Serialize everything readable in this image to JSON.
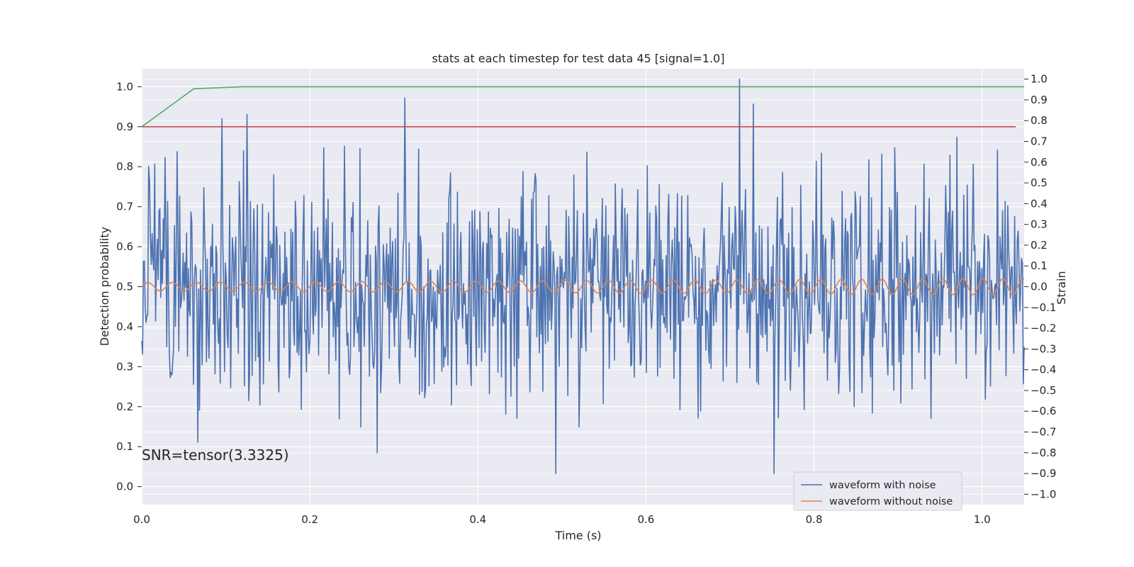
{
  "chart_data": {
    "type": "line",
    "title": "stats at each timestep for test data 45 [signal=1.0]",
    "xlabel": "Time (s)",
    "ylabel_left": "Detection probability",
    "ylabel_right": "Strain",
    "xlim": [
      0.0,
      1.05
    ],
    "ylim_left": [
      -0.045,
      1.045
    ],
    "ylim_right": [
      -1.05,
      1.05
    ],
    "x_ticks": [
      "0.0",
      "0.2",
      "0.4",
      "0.6",
      "0.8",
      "1.0"
    ],
    "y_left_ticks": [
      "0.0",
      "0.1",
      "0.2",
      "0.3",
      "0.4",
      "0.5",
      "0.6",
      "0.7",
      "0.8",
      "0.9",
      "1.0"
    ],
    "y_right_ticks": [
      "−1.0",
      "−0.9",
      "−0.8",
      "−0.7",
      "−0.6",
      "−0.5",
      "−0.4",
      "−0.3",
      "−0.2",
      "−0.1",
      "0.0",
      "0.1",
      "0.2",
      "0.3",
      "0.4",
      "0.5",
      "0.6",
      "0.7",
      "0.8",
      "0.9",
      "1.0"
    ],
    "grid": true,
    "annotation": "SNR=tensor(3.3325)",
    "legend_position": "lower-right",
    "series": [
      {
        "name": "waveform with noise",
        "axis": "right",
        "color": "#4c72b0",
        "sample_count": 1024,
        "seed": 45,
        "spikes": [
          {
            "x": 0.095,
            "y": 0.81
          },
          {
            "x": 0.125,
            "y": 0.83
          },
          {
            "x": 0.313,
            "y": 0.91
          },
          {
            "x": 0.711,
            "y": 1.0
          },
          {
            "x": 0.728,
            "y": 0.88
          },
          {
            "x": 0.067,
            "y": -0.75
          },
          {
            "x": 0.28,
            "y": -0.8
          },
          {
            "x": 0.493,
            "y": -0.9
          },
          {
            "x": 0.752,
            "y": -0.9
          },
          {
            "x": 0.97,
            "y": 0.72
          },
          {
            "x": 0.008,
            "y": 0.58
          }
        ]
      },
      {
        "name": "waveform without noise",
        "axis": "right",
        "color": "#dd8452",
        "amplitude_start": 0.02,
        "amplitude_end": 0.04,
        "cycles": 36
      },
      {
        "name": "",
        "axis": "left",
        "color": "#55a868",
        "x": [
          0.0,
          0.062,
          0.12,
          1.05
        ],
        "y": [
          0.9,
          0.995,
          1.0,
          1.0
        ]
      },
      {
        "name": "",
        "axis": "left",
        "color": "#c44e52",
        "x": [
          0.0,
          1.04
        ],
        "y": [
          0.9,
          0.9
        ]
      }
    ]
  }
}
